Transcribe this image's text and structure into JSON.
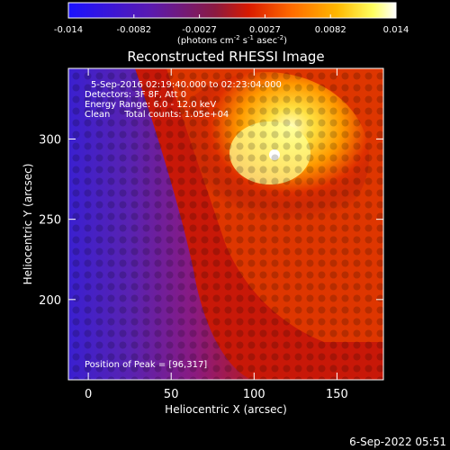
{
  "colorbar": {
    "ticks": [
      "-0.014",
      "-0.0082",
      "-0.0027",
      "0.0027",
      "0.0082",
      "0.014"
    ],
    "units_label": "(photons cm",
    "units_sup1": "-2",
    "units_mid": " s",
    "units_sup2": "-1",
    "units_end": " asec",
    "units_sup3": "-2",
    "units_close": ")",
    "range": [
      -0.014,
      0.014
    ],
    "colormap": [
      "#1a12ff",
      "#5a1ab0",
      "#8c1a40",
      "#d81a00",
      "#ff6a00",
      "#ffb800",
      "#ffff60",
      "#ffffff"
    ]
  },
  "plot": {
    "title": "Reconstructed RHESSI Image",
    "info_lines": [
      "5-Sep-2016 02:19:40.000 to 02:23:04.000",
      "Detectors: 3F 8F, Att 0",
      "Energy Range: 6.0 - 12.0 keV",
      "Clean     Total counts: 1.05e+04"
    ],
    "peak_text": "Position of Peak = [96,317]"
  },
  "footer": {
    "timestamp": "6-Sep-2022 05:51"
  },
  "chart_data": {
    "type": "heatmap",
    "title": "Reconstructed RHESSI Image",
    "xlabel": "Heliocentric X (arcsec)",
    "ylabel": "Heliocentric Y (arcsec)",
    "x_ticks": [
      0,
      50,
      100,
      150
    ],
    "y_ticks": [
      200,
      250,
      300
    ],
    "xlim": [
      -12,
      178
    ],
    "ylim": [
      150,
      344
    ],
    "colorbar_range": [
      -0.014,
      0.014
    ],
    "peak_position": [
      96,
      317
    ],
    "grid": false
  }
}
